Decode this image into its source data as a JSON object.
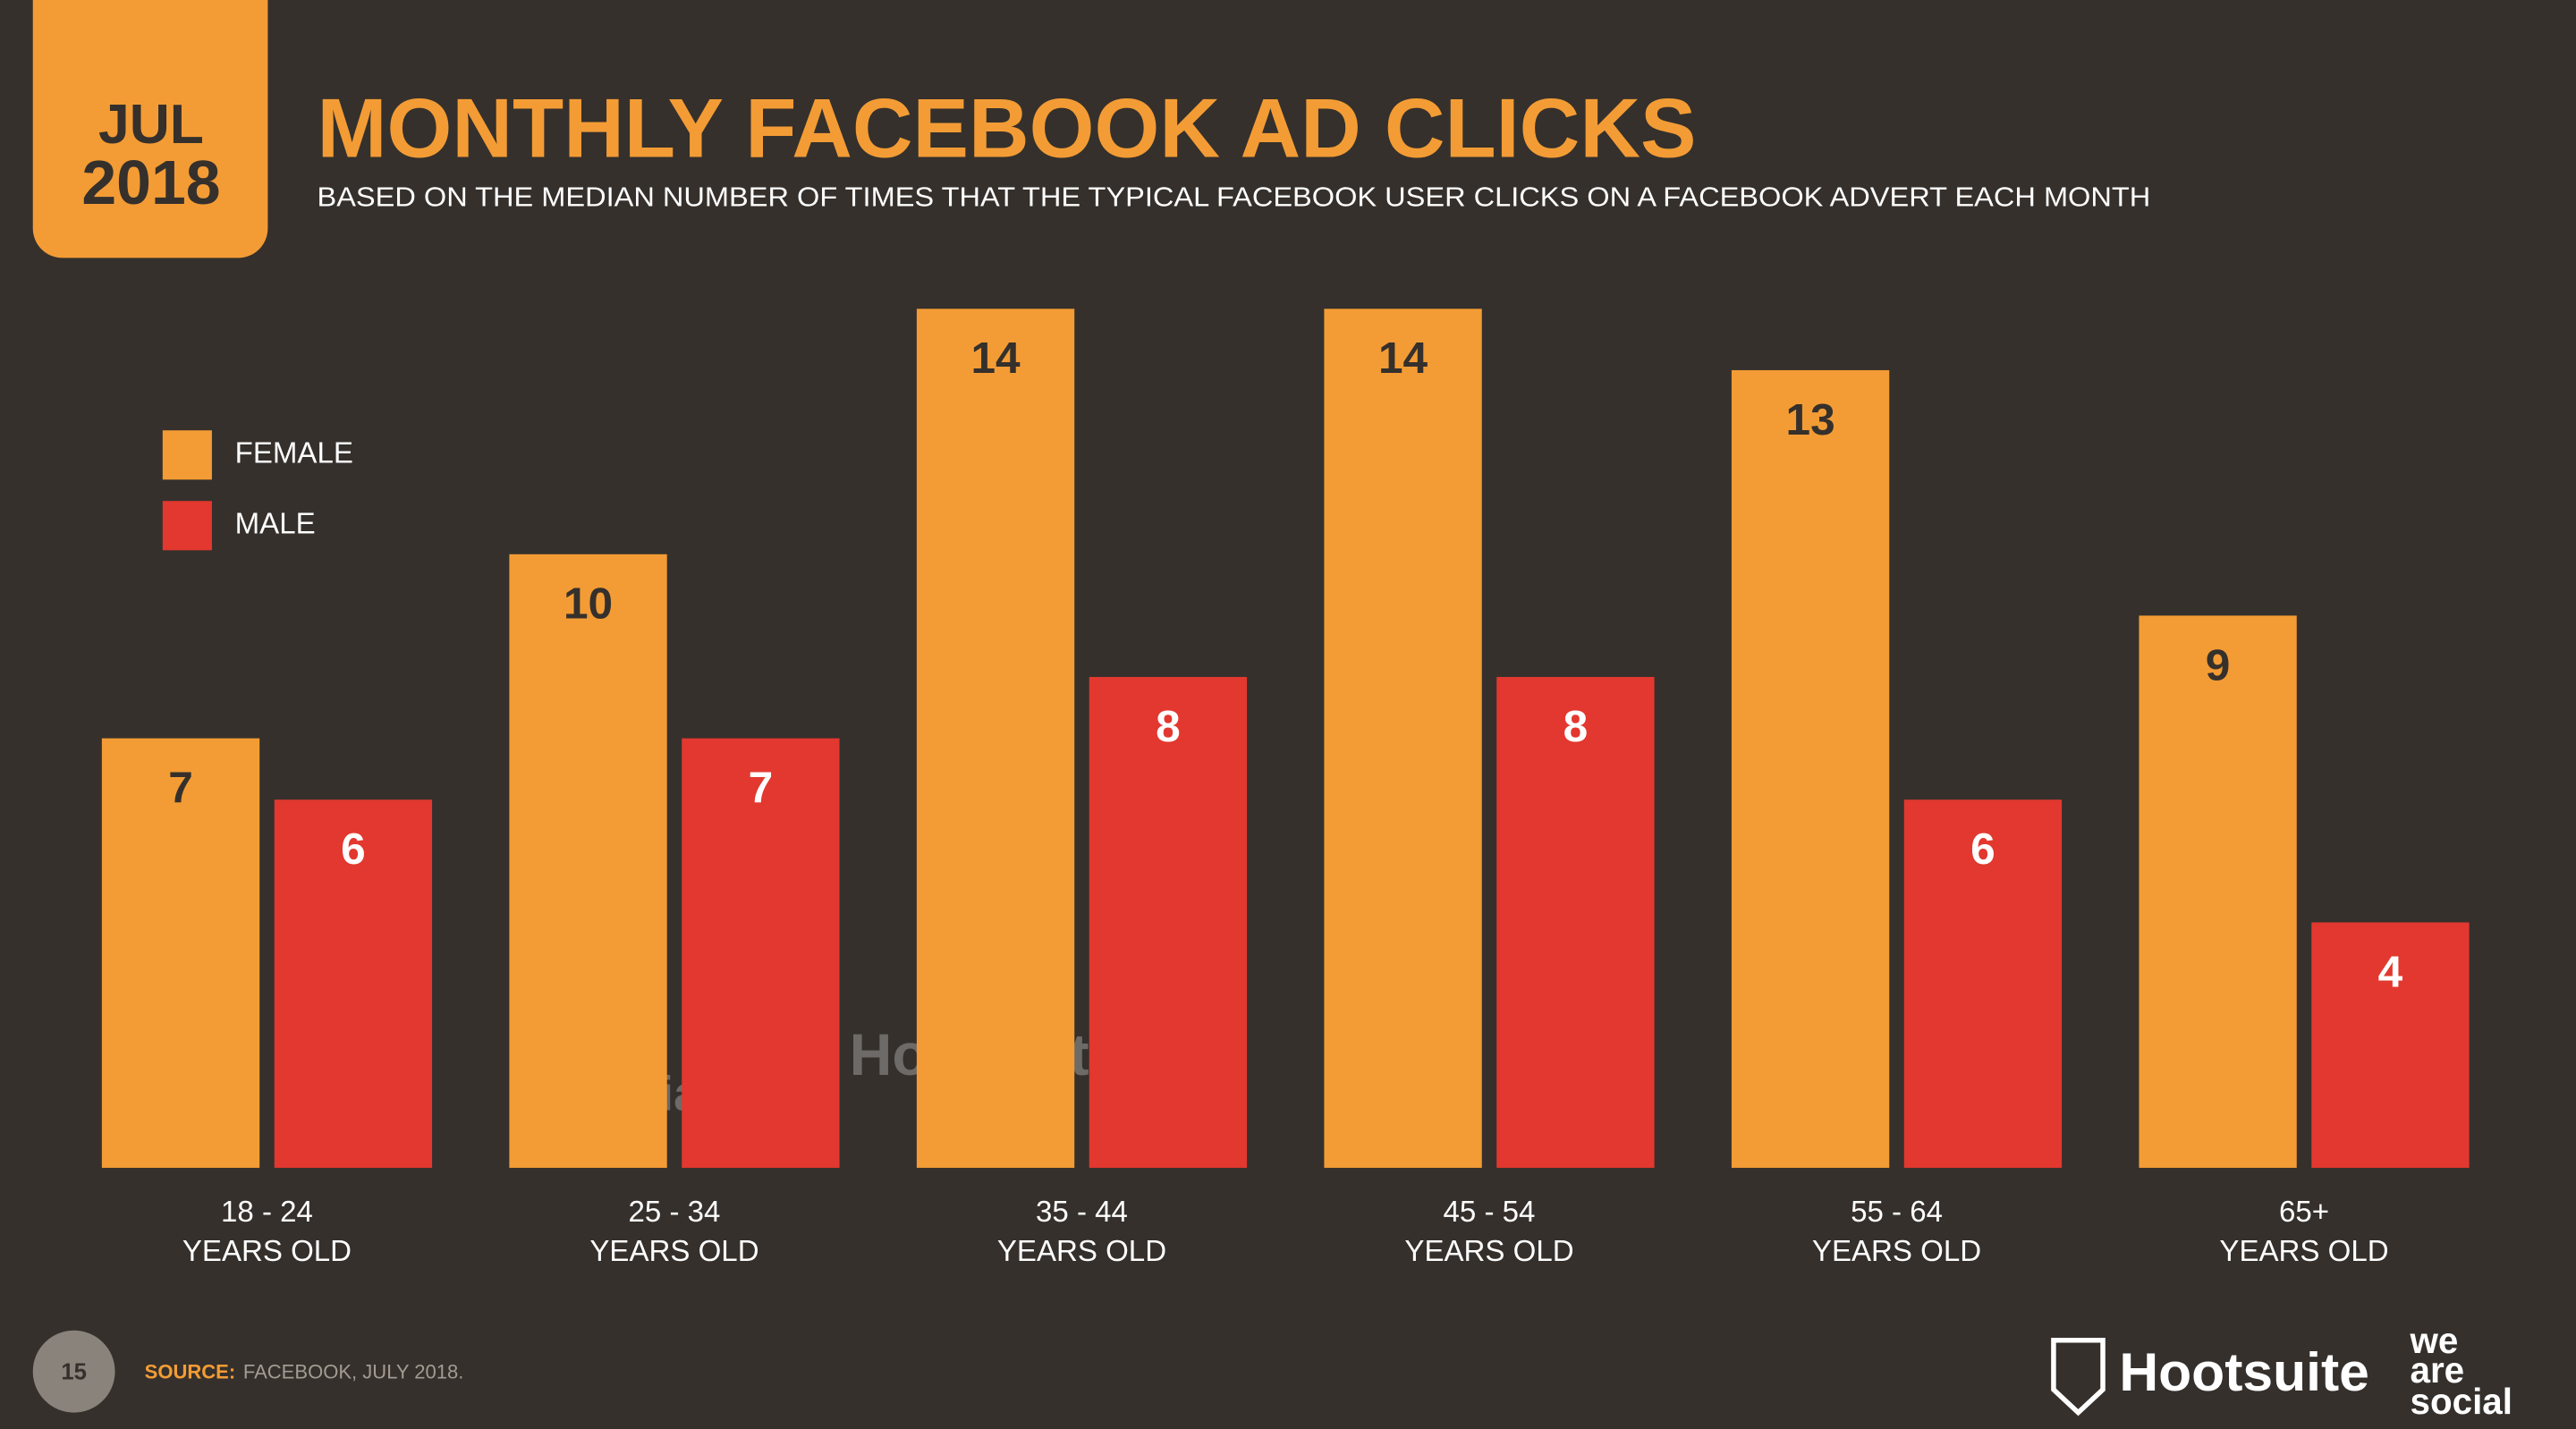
{
  "badge": {
    "month": "JUL",
    "year": "2018"
  },
  "chart_data": {
    "type": "bar",
    "title": "MONTHLY FACEBOOK AD CLICKS",
    "subtitle": "BASED ON THE MEDIAN NUMBER OF TIMES THAT THE TYPICAL FACEBOOK USER CLICKS ON A FACEBOOK ADVERT EACH MONTH",
    "categories": [
      [
        "18 - 24",
        "YEARS OLD"
      ],
      [
        "25 - 34",
        "YEARS OLD"
      ],
      [
        "35 - 44",
        "YEARS OLD"
      ],
      [
        "45 - 54",
        "YEARS OLD"
      ],
      [
        "55 - 64",
        "YEARS OLD"
      ],
      [
        "65+",
        "YEARS OLD"
      ]
    ],
    "series": [
      {
        "name": "FEMALE",
        "color": "#f39c35",
        "values": [
          7,
          10,
          14,
          14,
          13,
          9
        ]
      },
      {
        "name": "MALE",
        "color": "#e2382f",
        "values": [
          6,
          7,
          8,
          8,
          6,
          4
        ]
      }
    ],
    "ylim": [
      0,
      14
    ],
    "legend": "upper left"
  },
  "footer": {
    "page": "15",
    "source_label": "SOURCE:",
    "source": "FACEBOOK, JULY 2018."
  },
  "branding": {
    "hootsuite": "Hootsuite",
    "we": "we",
    "are": "are",
    "social": "social"
  }
}
